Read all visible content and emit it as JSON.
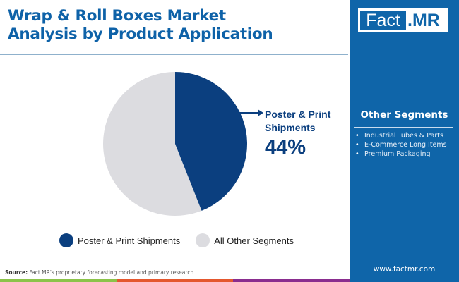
{
  "header": {
    "title_line1": "Wrap & Roll Boxes Market",
    "title_line2": "Analysis by Product Application"
  },
  "brand": {
    "logo_part1": "Fact",
    "logo_part2": ".MR",
    "url": "www.factmr.com",
    "sidebar_color": "#0f65a9"
  },
  "sidebar": {
    "other_segments_title": "Other Segments",
    "items": [
      {
        "label": "Industrial Tubes & Parts"
      },
      {
        "label": "E-Commerce Long Items"
      },
      {
        "label": "Premium Packaging"
      }
    ]
  },
  "callout": {
    "label_line1": "Poster & Print",
    "label_line2": "Shipments",
    "value": "44%"
  },
  "legend": [
    {
      "label": "Poster & Print Shipments",
      "color": "#0b3f7f"
    },
    {
      "label": "All Other Segments",
      "color": "#dcdce0"
    }
  ],
  "footer": {
    "source_label": "Source:",
    "source_text": " Fact.MR's proprietary forecasting model and primary research",
    "bar_colors": [
      "#8bc34a",
      "#e4572e",
      "#8a2d8f"
    ]
  },
  "chart_data": {
    "type": "pie",
    "title": "Wrap & Roll Boxes Market Analysis by Product Application",
    "categories": [
      "Poster & Print Shipments",
      "All Other Segments"
    ],
    "values": [
      44,
      56
    ],
    "colors": [
      "#0b3f7f",
      "#dcdce0"
    ],
    "annotations": [
      {
        "label": "Poster & Print Shipments",
        "value": "44%"
      }
    ],
    "legend_position": "bottom"
  }
}
